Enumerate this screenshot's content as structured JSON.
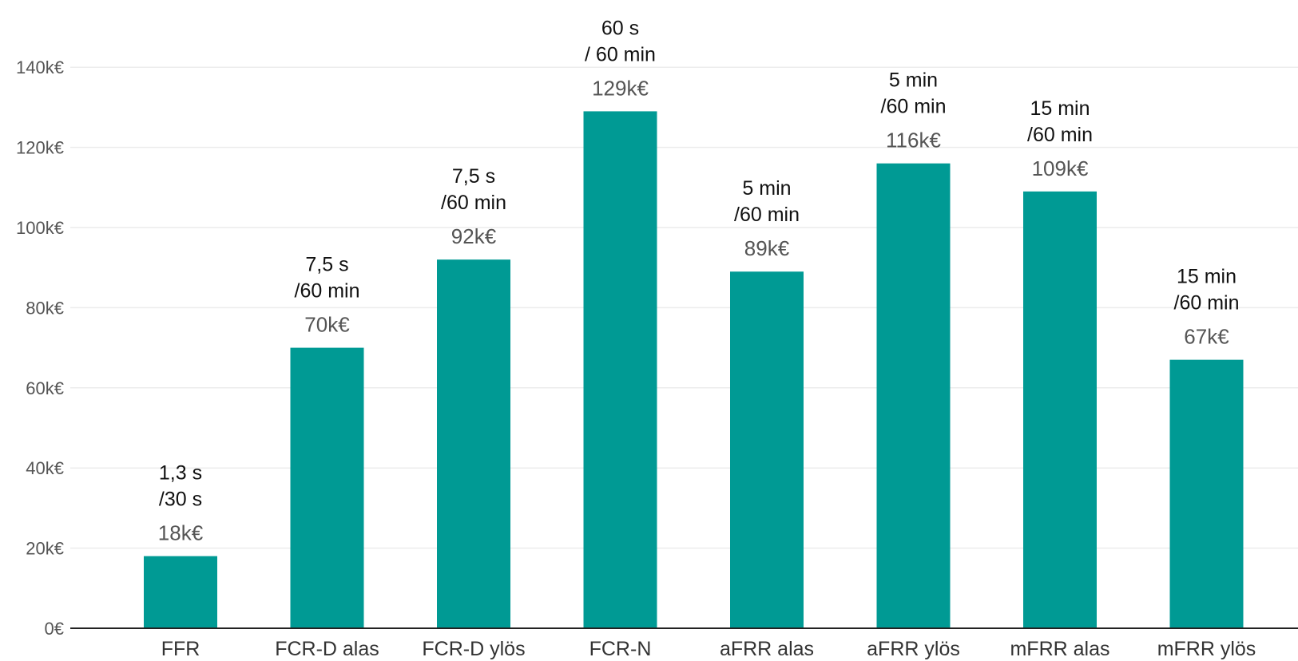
{
  "chart_data": {
    "type": "bar",
    "categories": [
      "FFR",
      "FCR-D alas",
      "FCR-D ylös",
      "FCR-N",
      "aFRR alas",
      "aFRR ylös",
      "mFRR alas",
      "mFRR ylös"
    ],
    "values": [
      18,
      70,
      92,
      129,
      89,
      116,
      109,
      67
    ],
    "value_labels": [
      "18k€",
      "70k€",
      "92k€",
      "129k€",
      "89k€",
      "116k€",
      "109k€",
      "67k€"
    ],
    "annotations": [
      [
        "1,3 s",
        "/30 s"
      ],
      [
        "7,5 s",
        "/60 min"
      ],
      [
        "7,5 s",
        "/60 min"
      ],
      [
        "60 s",
        "/ 60 min"
      ],
      [
        "5 min",
        "/60 min"
      ],
      [
        "5 min",
        "/60 min"
      ],
      [
        "15 min",
        "/60 min"
      ],
      [
        "15 min",
        "/60 min"
      ]
    ],
    "yticks": [
      0,
      20,
      40,
      60,
      80,
      100,
      120,
      140
    ],
    "ytick_labels": [
      "0€",
      "20k€",
      "40k€",
      "60k€",
      "80k€",
      "100k€",
      "120k€",
      "140k€"
    ],
    "ylim": [
      0,
      140
    ],
    "title": "",
    "xlabel": "",
    "ylabel": "",
    "grid": true,
    "bar_color": "#009a94"
  }
}
